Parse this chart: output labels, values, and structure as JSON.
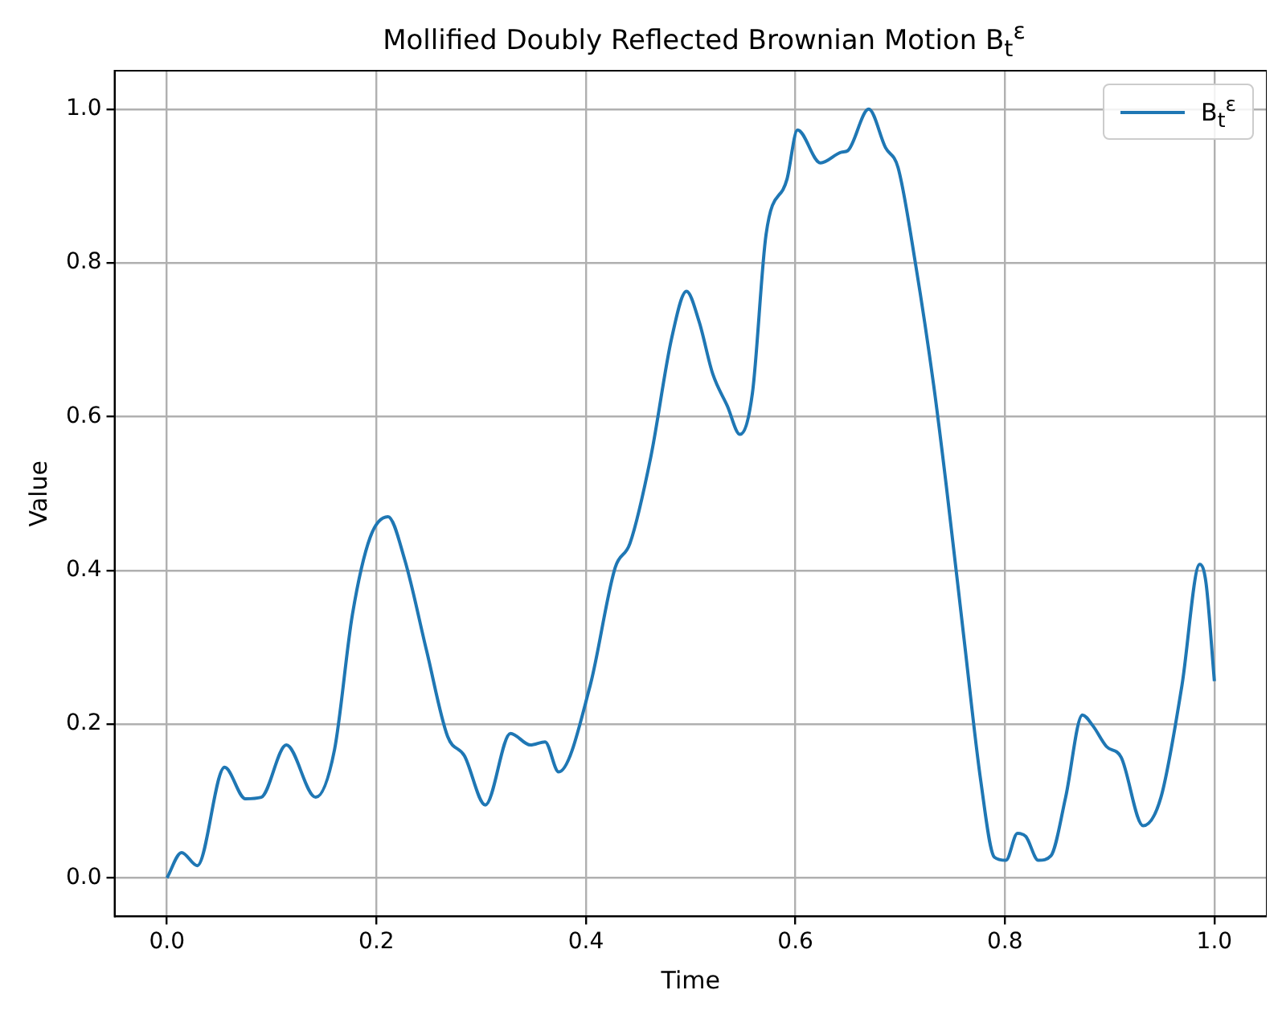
{
  "chart_data": {
    "type": "line",
    "title": "Mollified Doubly Reflected Brownian Motion B$_{t}$$^{ε}$",
    "xlabel": "Time",
    "ylabel": "Value",
    "xlim": [
      -0.05,
      1.05
    ],
    "xticks": [
      {
        "value": 0,
        "label": "0.0"
      },
      0.2,
      0.4,
      0.6,
      0.8,
      {
        "value": 1,
        "label": "1.0"
      }
    ],
    "ylim": [
      -0.05,
      1.05
    ],
    "yticks": [
      {
        "value": 0,
        "label": "0.0"
      },
      0.2,
      0.4,
      0.6,
      0.8,
      {
        "value": 1,
        "label": "1.0"
      }
    ],
    "grid": true,
    "legend": "top right",
    "marker": "none",
    "line_style": "solid",
    "series": [
      {
        "name": "B$_{t}$$^{ε}$",
        "color": "#1f77b4",
        "x": [
          0,
          0.014,
          0.029,
          0.055,
          0.075,
          0.09,
          0.114,
          0.142,
          0.16,
          0.177,
          0.194,
          0.211,
          0.227,
          0.248,
          0.268,
          0.284,
          0.304,
          0.328,
          0.347,
          0.361,
          0.374,
          0.404,
          0.428,
          0.442,
          0.462,
          0.482,
          0.496,
          0.508,
          0.521,
          0.535,
          0.547,
          0.559,
          0.572,
          0.592,
          0.602,
          0.624,
          0.644,
          0.65,
          0.67,
          0.686,
          0.698,
          0.715,
          0.732,
          0.744,
          0.761,
          0.777,
          0.79,
          0.801,
          0.812,
          0.82,
          0.832,
          0.844,
          0.858,
          0.874,
          0.884,
          0.897,
          0.911,
          0.932,
          0.949,
          0.969,
          0.986,
          0.992,
          1.0
        ],
        "values": [
          0,
          0.033,
          0.016,
          0.144,
          0.103,
          0.105,
          0.173,
          0.105,
          0.167,
          0.342,
          0.443,
          0.47,
          0.414,
          0.295,
          0.184,
          0.159,
          0.095,
          0.188,
          0.173,
          0.177,
          0.138,
          0.25,
          0.404,
          0.435,
          0.548,
          0.703,
          0.763,
          0.724,
          0.656,
          0.614,
          0.577,
          0.631,
          0.837,
          0.909,
          0.973,
          0.93,
          0.944,
          0.946,
          1.0,
          0.95,
          0.924,
          0.796,
          0.641,
          0.511,
          0.311,
          0.126,
          0.027,
          0.023,
          0.058,
          0.054,
          0.023,
          0.029,
          0.105,
          0.212,
          0.198,
          0.171,
          0.157,
          0.068,
          0.105,
          0.25,
          0.408,
          0.384,
          0.256
        ]
      }
    ]
  }
}
